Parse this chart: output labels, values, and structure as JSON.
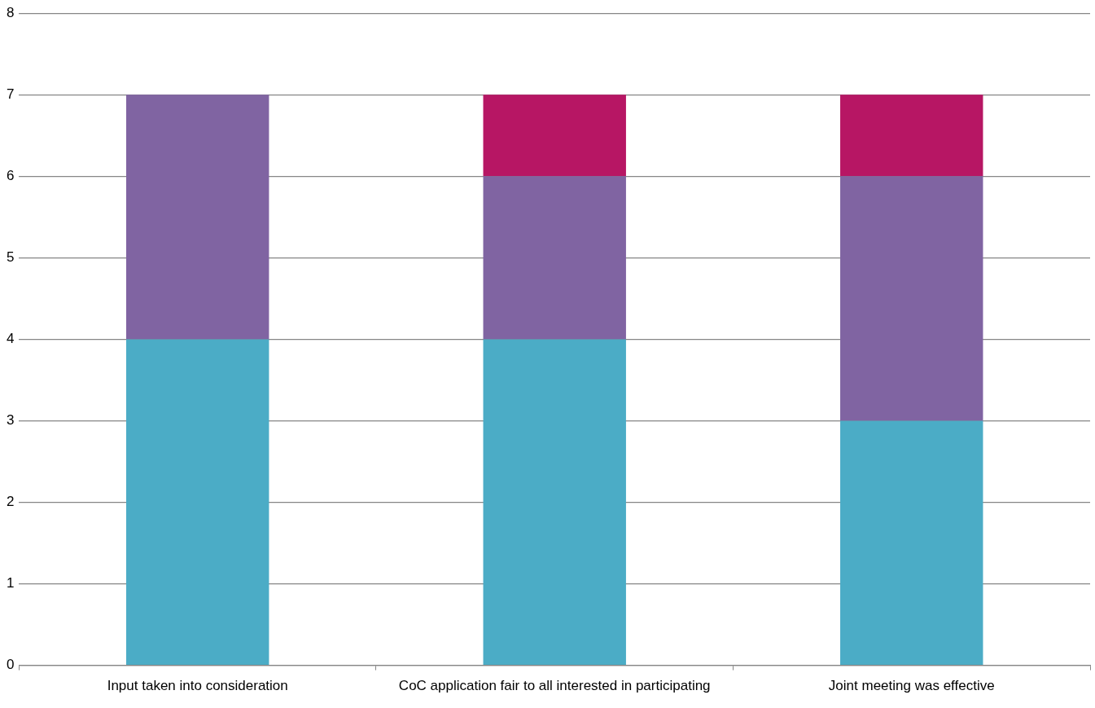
{
  "chart_data": {
    "type": "bar",
    "stacked": true,
    "categories": [
      "Input taken into consideration",
      "CoC application fair to all interested in participating",
      "Joint meeting was effective"
    ],
    "series": [
      {
        "color": "#4bacc6",
        "values": [
          4,
          4,
          3
        ]
      },
      {
        "color": "#8064a2",
        "values": [
          3,
          2,
          3
        ]
      },
      {
        "color": "#b71664",
        "values": [
          0,
          1,
          1
        ]
      }
    ],
    "ylim": [
      0,
      8
    ],
    "yticks": [
      0,
      1,
      2,
      3,
      4,
      5,
      6,
      7,
      8
    ],
    "grid": "y",
    "legend": false
  }
}
